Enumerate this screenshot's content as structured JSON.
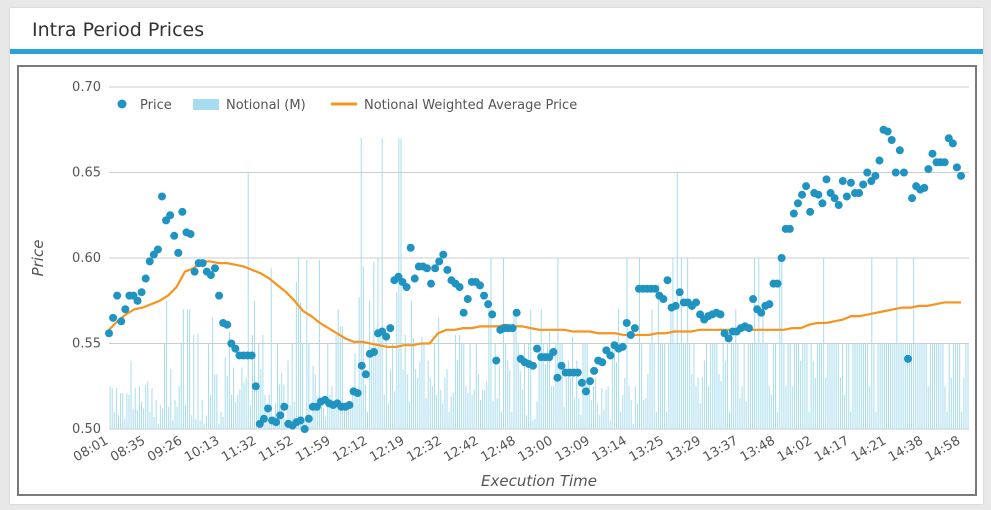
{
  "panel": {
    "title": "Intra Period Prices"
  },
  "colors": {
    "accent": "#2ba3d4",
    "price": "#1f93c2",
    "notional": "#a7dcee",
    "nwap": "#f7941d",
    "grid": "#cccccc",
    "text": "#555555"
  },
  "chart_data": {
    "type": "combo",
    "title": "Intra Period Prices",
    "xlabel": "Execution Time",
    "ylabel": "Price",
    "ylim": [
      0.5,
      0.7
    ],
    "yticks": [
      "0.70",
      "0.65",
      "0.60",
      "0.55",
      "0.50"
    ],
    "xticks": [
      "08:01",
      "08:35",
      "09:26",
      "10:13",
      "11:32",
      "11:52",
      "11:59",
      "12:12",
      "12:19",
      "12:32",
      "12:42",
      "12:48",
      "13:00",
      "13:09",
      "13:14",
      "13:25",
      "13:29",
      "13:37",
      "13:48",
      "14:02",
      "14:17",
      "14:21",
      "14:38",
      "14:58"
    ],
    "grid": true,
    "legend_position": "top-left",
    "legend": [
      "Price",
      "Notional (M)",
      "Notional Weighted Average Price"
    ],
    "series": [
      {
        "name": "Price",
        "kind": "scatter",
        "values": [
          0.556,
          0.565,
          0.578,
          0.563,
          0.57,
          0.578,
          0.578,
          0.575,
          0.58,
          0.588,
          0.598,
          0.602,
          0.605,
          0.636,
          0.622,
          0.625,
          0.613,
          0.603,
          0.627,
          0.615,
          0.614,
          0.592,
          0.597,
          0.597,
          0.592,
          0.59,
          0.594,
          0.578,
          0.562,
          0.561,
          0.55,
          0.547,
          0.543,
          0.543,
          0.543,
          0.543,
          0.525,
          0.503,
          0.506,
          0.512,
          0.505,
          0.504,
          0.508,
          0.513,
          0.503,
          0.502,
          0.504,
          0.505,
          0.5,
          0.506,
          0.513,
          0.513,
          0.516,
          0.517,
          0.515,
          0.514,
          0.515,
          0.513,
          0.513,
          0.514,
          0.522,
          0.521,
          0.537,
          0.532,
          0.544,
          0.545,
          0.556,
          0.557,
          0.554,
          0.559,
          0.587,
          0.589,
          0.586,
          0.583,
          0.606,
          0.588,
          0.595,
          0.595,
          0.594,
          0.585,
          0.594,
          0.598,
          0.602,
          0.593,
          0.587,
          0.585,
          0.583,
          0.568,
          0.576,
          0.586,
          0.586,
          0.584,
          0.578,
          0.573,
          0.567,
          0.54,
          0.558,
          0.559,
          0.559,
          0.559,
          0.568,
          0.541,
          0.539,
          0.538,
          0.537,
          0.547,
          0.542,
          0.542,
          0.542,
          0.545,
          0.53,
          0.537,
          0.533,
          0.533,
          0.533,
          0.533,
          0.527,
          0.522,
          0.528,
          0.534,
          0.54,
          0.539,
          0.546,
          0.543,
          0.549,
          0.547,
          0.548,
          0.562,
          0.555,
          0.559,
          0.582,
          0.582,
          0.582,
          0.582,
          0.582,
          0.578,
          0.576,
          0.587,
          0.571,
          0.572,
          0.58,
          0.574,
          0.574,
          0.572,
          0.574,
          0.567,
          0.564,
          0.566,
          0.567,
          0.568,
          0.567,
          0.556,
          0.553,
          0.557,
          0.557,
          0.559,
          0.56,
          0.559,
          0.576,
          0.57,
          0.568,
          0.572,
          0.573,
          0.585,
          0.585,
          0.6,
          0.617,
          0.617,
          0.626,
          0.632,
          0.637,
          0.642,
          0.627,
          0.638,
          0.637,
          0.632,
          0.646,
          0.638,
          0.635,
          0.631,
          0.645,
          0.636,
          0.644,
          0.638,
          0.638,
          0.643,
          0.65,
          0.645,
          0.648,
          0.657,
          0.675,
          0.674,
          0.669,
          0.65,
          0.663,
          0.65,
          0.541,
          0.635,
          0.642,
          0.64,
          0.641,
          0.652,
          0.661,
          0.656,
          0.656,
          0.656,
          0.67,
          0.667,
          0.653,
          0.648
        ]
      },
      {
        "name": "Notional (M)",
        "kind": "bar",
        "values": [
          0.025,
          0.024,
          0.01,
          0.024,
          0.008,
          0.021,
          0.021,
          0.006,
          0.021,
          0.02,
          0.04,
          0.012,
          0.024,
          0.011,
          0.025,
          0.016,
          0.012,
          0.026,
          0.028,
          0.01,
          0.024,
          0.007,
          0.017,
          0.003,
          0.014,
          0.012,
          0.05,
          0.075,
          0.013,
          0.035,
          0.005,
          0.017,
          0.013,
          0.025,
          0.05,
          0.07,
          0.014,
          0.07,
          0.07,
          0.008,
          0.055,
          0.006,
          0.056,
          0.005,
          0.017,
          0.003,
          0.008,
          0.05,
          0.02,
          0.065,
          0.032,
          0.032,
          0.003,
          0.01,
          0.007,
          0.042,
          0.031,
          0.057,
          0.02,
          0.036,
          0.016,
          0.02,
          0.023,
          0.036,
          0.027,
          0.03,
          0.15,
          0.014,
          0.055,
          0.075,
          0.024,
          0.05,
          0.035,
          0.055,
          0.02,
          0.013,
          0.02,
          0.094,
          0.007,
          0.015,
          0.05,
          0.026,
          0.033,
          0.026,
          0.006,
          0.04,
          0.014,
          0.05,
          0.016,
          0.086,
          0.1,
          0.074,
          0.05,
          0.004,
          0.099,
          0.05,
          0.008,
          0.037,
          0.032,
          0.019,
          0.099,
          0.018,
          0.012,
          0.007,
          0.05,
          0.02,
          0.025,
          0.013,
          0.055,
          0.07,
          0.06,
          0.06,
          0.014,
          0.016,
          0.014,
          0.011,
          0.021,
          0.044,
          0.018,
          0.077,
          0.17,
          0.095,
          0.026,
          0.01,
          0.075,
          0.048,
          0.098,
          0.05,
          0.1,
          0.055,
          0.17,
          0.02,
          0.056,
          0.015,
          0.035,
          0.05,
          0.022,
          0.08,
          0.17,
          0.17,
          0.035,
          0.055,
          0.032,
          0.016,
          0.075,
          0.053,
          0.035,
          0.03,
          0.039,
          0.054,
          0.05,
          0.018,
          0.04,
          0.03,
          0.025,
          0.05,
          0.02,
          0.065,
          0.023,
          0.015,
          0.03,
          0.035,
          0.01,
          0.019,
          0.021,
          0.055,
          0.04,
          0.055,
          0.05,
          0.05,
          0.025,
          0.021,
          0.05,
          0.02,
          0.023,
          0.05,
          0.032,
          0.017,
          0.023,
          0.023,
          0.028,
          0.07,
          0.1,
          0.016,
          0.05,
          0.018,
          0.037,
          0.01,
          0.1,
          0.05,
          0.04,
          0.034,
          0.01,
          0.07,
          0.07,
          0.05,
          0.034,
          0.023,
          0.05,
          0.008,
          0.05,
          0.07,
          0.005,
          0.006,
          0.016,
          0.05,
          0.07,
          0.05,
          0.038,
          0.05,
          0.057,
          0.025,
          0.025,
          0.05,
          0.1,
          0.05,
          0.05,
          0.013,
          0.03,
          0.04,
          0.03,
          0.054,
          0.018,
          0.04,
          0.018,
          0.008,
          0.05,
          0.05,
          0.05,
          0.03,
          0.017,
          0.025,
          0.03,
          0.015,
          0.008,
          0.024,
          0.011,
          0.023,
          0.025,
          0.005,
          0.05,
          0.05,
          0.039,
          0.07,
          0.01,
          0.02,
          0.03,
          0.1,
          0.025,
          0.017,
          0.003,
          0.025,
          0.015,
          0.1,
          0.05,
          0.017,
          0.018,
          0.032,
          0.05,
          0.07,
          0.05,
          0.01,
          0.085,
          0.05,
          0.05,
          0.05,
          0.01,
          0.05,
          0.07,
          0.1,
          0.05,
          0.15,
          0.05,
          0.1,
          0.05,
          0.05,
          0.1,
          0.05,
          0.032,
          0.05,
          0.025,
          0.03,
          0.015,
          0.03,
          0.04,
          0.05,
          0.025,
          0.05,
          0.05,
          0.05,
          0.05,
          0.032,
          0.028,
          0.05,
          0.04,
          0.05,
          0.01,
          0.05,
          0.05,
          0.07,
          0.05,
          0.018,
          0.025,
          0.05,
          0.016,
          0.05,
          0.05,
          0.05,
          0.1,
          0.05,
          0.1,
          0.05,
          0.07,
          0.05,
          0.05,
          0.025,
          0.02,
          0.05,
          0.05,
          0.01,
          0.1,
          0.1,
          0.05,
          0.025,
          0.05,
          0.05,
          0.025,
          0.05,
          0.05,
          0.05,
          0.04,
          0.05,
          0.05,
          0.05,
          0.01,
          0.05,
          0.04,
          0.03,
          0.05,
          0.05,
          0.05,
          0.1,
          0.03,
          0.05,
          0.05,
          0.05,
          0.05,
          0.05,
          0.05,
          0.03,
          0.05,
          0.02,
          0.05,
          0.05,
          0.01,
          0.05,
          0.05,
          0.05,
          0.05,
          0.05,
          0.05,
          0.05,
          0.05,
          0.025,
          0.1,
          0.05,
          0.01,
          0.05,
          0.05,
          0.05,
          0.05,
          0.05,
          0.05,
          0.05,
          0.05,
          0.05,
          0.1,
          0.05,
          0.05,
          0.05,
          0.05,
          0.05,
          0.05,
          0.05,
          0.1,
          0.05,
          0.05,
          0.05,
          0.05,
          0.05,
          0.05,
          0.025,
          0.05,
          0.05,
          0.05,
          0.05,
          0.05,
          0.05,
          0.05,
          0.025,
          0.01,
          0.05,
          0.03,
          0.05,
          0.05,
          0.05,
          0.05,
          0.01,
          0.03,
          0.05,
          0.05
        ]
      },
      {
        "name": "Notional Weighted Average Price",
        "kind": "line",
        "values": [
          0.558,
          0.563,
          0.567,
          0.57,
          0.571,
          0.573,
          0.575,
          0.578,
          0.583,
          0.592,
          0.594,
          0.598,
          0.598,
          0.597,
          0.597,
          0.596,
          0.595,
          0.593,
          0.591,
          0.588,
          0.584,
          0.58,
          0.575,
          0.569,
          0.566,
          0.562,
          0.559,
          0.556,
          0.553,
          0.551,
          0.551,
          0.55,
          0.549,
          0.548,
          0.548,
          0.549,
          0.549,
          0.55,
          0.55,
          0.556,
          0.558,
          0.558,
          0.559,
          0.559,
          0.56,
          0.56,
          0.56,
          0.561,
          0.56,
          0.56,
          0.559,
          0.558,
          0.558,
          0.558,
          0.558,
          0.557,
          0.557,
          0.557,
          0.556,
          0.556,
          0.556,
          0.555,
          0.555,
          0.555,
          0.555,
          0.556,
          0.556,
          0.557,
          0.557,
          0.557,
          0.558,
          0.558,
          0.558,
          0.558,
          0.558,
          0.558,
          0.558,
          0.558,
          0.558,
          0.558,
          0.558,
          0.559,
          0.559,
          0.561,
          0.562,
          0.562,
          0.563,
          0.564,
          0.566,
          0.566,
          0.567,
          0.568,
          0.569,
          0.57,
          0.571,
          0.571,
          0.572,
          0.572,
          0.573,
          0.574,
          0.574,
          0.574
        ]
      }
    ]
  }
}
